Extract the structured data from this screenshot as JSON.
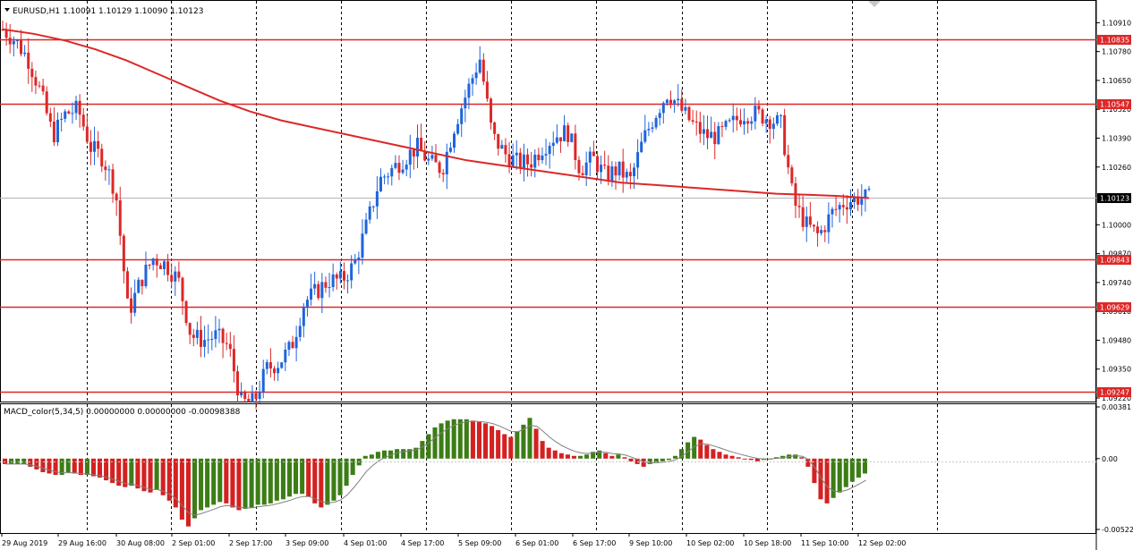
{
  "symbol_title": "EURUSD,H1  1.10091 1.10129 1.10090 1.10123",
  "macd_title": "MACD_color(5,34,5) 0.00000000 0.00000000 -0.00098388",
  "colors": {
    "bull": "#1e64dc",
    "bear": "#dc2828",
    "ma": "#dc2828",
    "hline": "#dc2828",
    "macd_pos": "#d42121",
    "macd_neg": "#3c7d16",
    "grid": "#000000",
    "signal": "#808080",
    "price_tag": "#000000"
  },
  "chart_data": [
    {
      "type": "candlestick",
      "symbol": "EURUSD",
      "timeframe": "H1",
      "ylim": [
        1.0922,
        1.1098
      ],
      "y_ticks": [
        "1.10910",
        "1.10780",
        "1.10650",
        "1.10520",
        "1.10390",
        "1.10260",
        "1.10000",
        "1.09870",
        "1.09740",
        "1.09610",
        "1.09480",
        "1.09350",
        "1.09220"
      ],
      "x_ticks": [
        "29 Aug 2019",
        "29 Aug 16:00",
        "30 Aug 08:00",
        "2 Sep 01:00",
        "2 Sep 17:00",
        "3 Sep 09:00",
        "4 Sep 01:00",
        "4 Sep 17:00",
        "5 Sep 09:00",
        "6 Sep 01:00",
        "6 Sep 17:00",
        "9 Sep 10:00",
        "10 Sep 02:00",
        "10 Sep 18:00",
        "11 Sep 10:00",
        "12 Sep 02:00"
      ],
      "horizontal_levels": [
        "1.10835",
        "1.10547",
        "1.09843",
        "1.09629",
        "1.09247"
      ],
      "current_price": "1.10123",
      "close_path": [
        1.1088,
        1.1083,
        1.1075,
        1.106,
        1.104,
        1.105,
        1.1052,
        1.1035,
        1.103,
        1.1015,
        1.096,
        1.0975,
        1.0985,
        1.0982,
        1.0975,
        1.095,
        1.0948,
        1.095,
        1.0945,
        1.092,
        1.092,
        1.0935,
        1.0938,
        1.0945,
        1.0965,
        1.097,
        1.0975,
        1.0975,
        1.0982,
        1.1,
        1.102,
        1.1025,
        1.103,
        1.1035,
        1.1028,
        1.1025,
        1.1045,
        1.106,
        1.1075,
        1.104,
        1.1032,
        1.1028,
        1.1028,
        1.1035,
        1.104,
        1.1042,
        1.1025,
        1.103,
        1.1022,
        1.1025,
        1.102,
        1.1038,
        1.105,
        1.106,
        1.1052,
        1.1045,
        1.104,
        1.104,
        1.1045,
        1.105,
        1.105,
        1.1048,
        1.1045,
        1.101,
        1.1,
        1.0995,
        1.1005,
        1.101,
        1.1012,
        1.1012
      ],
      "ma_path": [
        1.1088,
        1.1086,
        1.1083,
        1.1079,
        1.1074,
        1.1068,
        1.1062,
        1.1056,
        1.1051,
        1.1047,
        1.1044,
        1.1041,
        1.1038,
        1.1035,
        1.1032,
        1.1029,
        1.1027,
        1.1025,
        1.1023,
        1.1021,
        1.1019,
        1.1018,
        1.1017,
        1.1016,
        1.1015,
        1.1014,
        1.10135,
        1.1013,
        1.1012
      ]
    },
    {
      "type": "bar",
      "name": "MACD_color(5,34,5)",
      "ylim": [
        -0.00522,
        0.00381
      ],
      "y_ticks": [
        "0.00381",
        "0.00",
        "-0.00522"
      ],
      "values": [
        -0.0004,
        -0.0004,
        -0.0004,
        -0.0004,
        -0.0006,
        -0.0008,
        -0.001,
        -0.0011,
        -0.0012,
        -0.0012,
        -0.001,
        -0.0011,
        -0.0012,
        -0.0012,
        -0.0013,
        -0.0014,
        -0.0016,
        -0.0018,
        -0.002,
        -0.0021,
        -0.002,
        -0.0022,
        -0.0024,
        -0.0025,
        -0.0023,
        -0.0027,
        -0.0031,
        -0.0036,
        -0.0045,
        -0.005,
        -0.0044,
        -0.0038,
        -0.0036,
        -0.0034,
        -0.0032,
        -0.0033,
        -0.0036,
        -0.0038,
        -0.0037,
        -0.0036,
        -0.0034,
        -0.0034,
        -0.0033,
        -0.0031,
        -0.003,
        -0.0028,
        -0.0026,
        -0.0026,
        -0.0028,
        -0.0033,
        -0.0036,
        -0.0034,
        -0.0031,
        -0.0027,
        -0.002,
        -0.0012,
        -0.0005,
        0.0002,
        0.0003,
        0.0005,
        0.0006,
        0.0006,
        0.0007,
        0.0007,
        0.0007,
        0.0008,
        0.0013,
        0.0018,
        0.0023,
        0.0026,
        0.0028,
        0.0029,
        0.0029,
        0.0029,
        0.0028,
        0.0027,
        0.0026,
        0.0024,
        0.0021,
        0.0018,
        0.0016,
        0.002,
        0.0025,
        0.003,
        0.0022,
        0.0013,
        0.0008,
        0.0006,
        0.0004,
        0.0003,
        0.0002,
        0.0002,
        0.0003,
        0.0005,
        0.0006,
        0.0004,
        0.0002,
        0.0003,
        0.0001,
        -0.0002,
        -0.0004,
        -0.0006,
        -0.0004,
        -0.0003,
        -0.0002,
        -0.0001,
        0.0002,
        0.0007,
        0.0012,
        0.0016,
        0.0014,
        0.001,
        0.0007,
        0.0005,
        0.0003,
        0.0002,
        0.0001,
        0.0,
        -0.0001,
        -0.0002,
        -0.0001,
        0.0,
        0.0001,
        0.0002,
        0.0003,
        0.0003,
        0.0001,
        -0.0006,
        -0.0018,
        -0.003,
        -0.0033,
        -0.0029,
        -0.0025,
        -0.0021,
        -0.0017,
        -0.0014,
        -0.0011
      ]
    }
  ]
}
